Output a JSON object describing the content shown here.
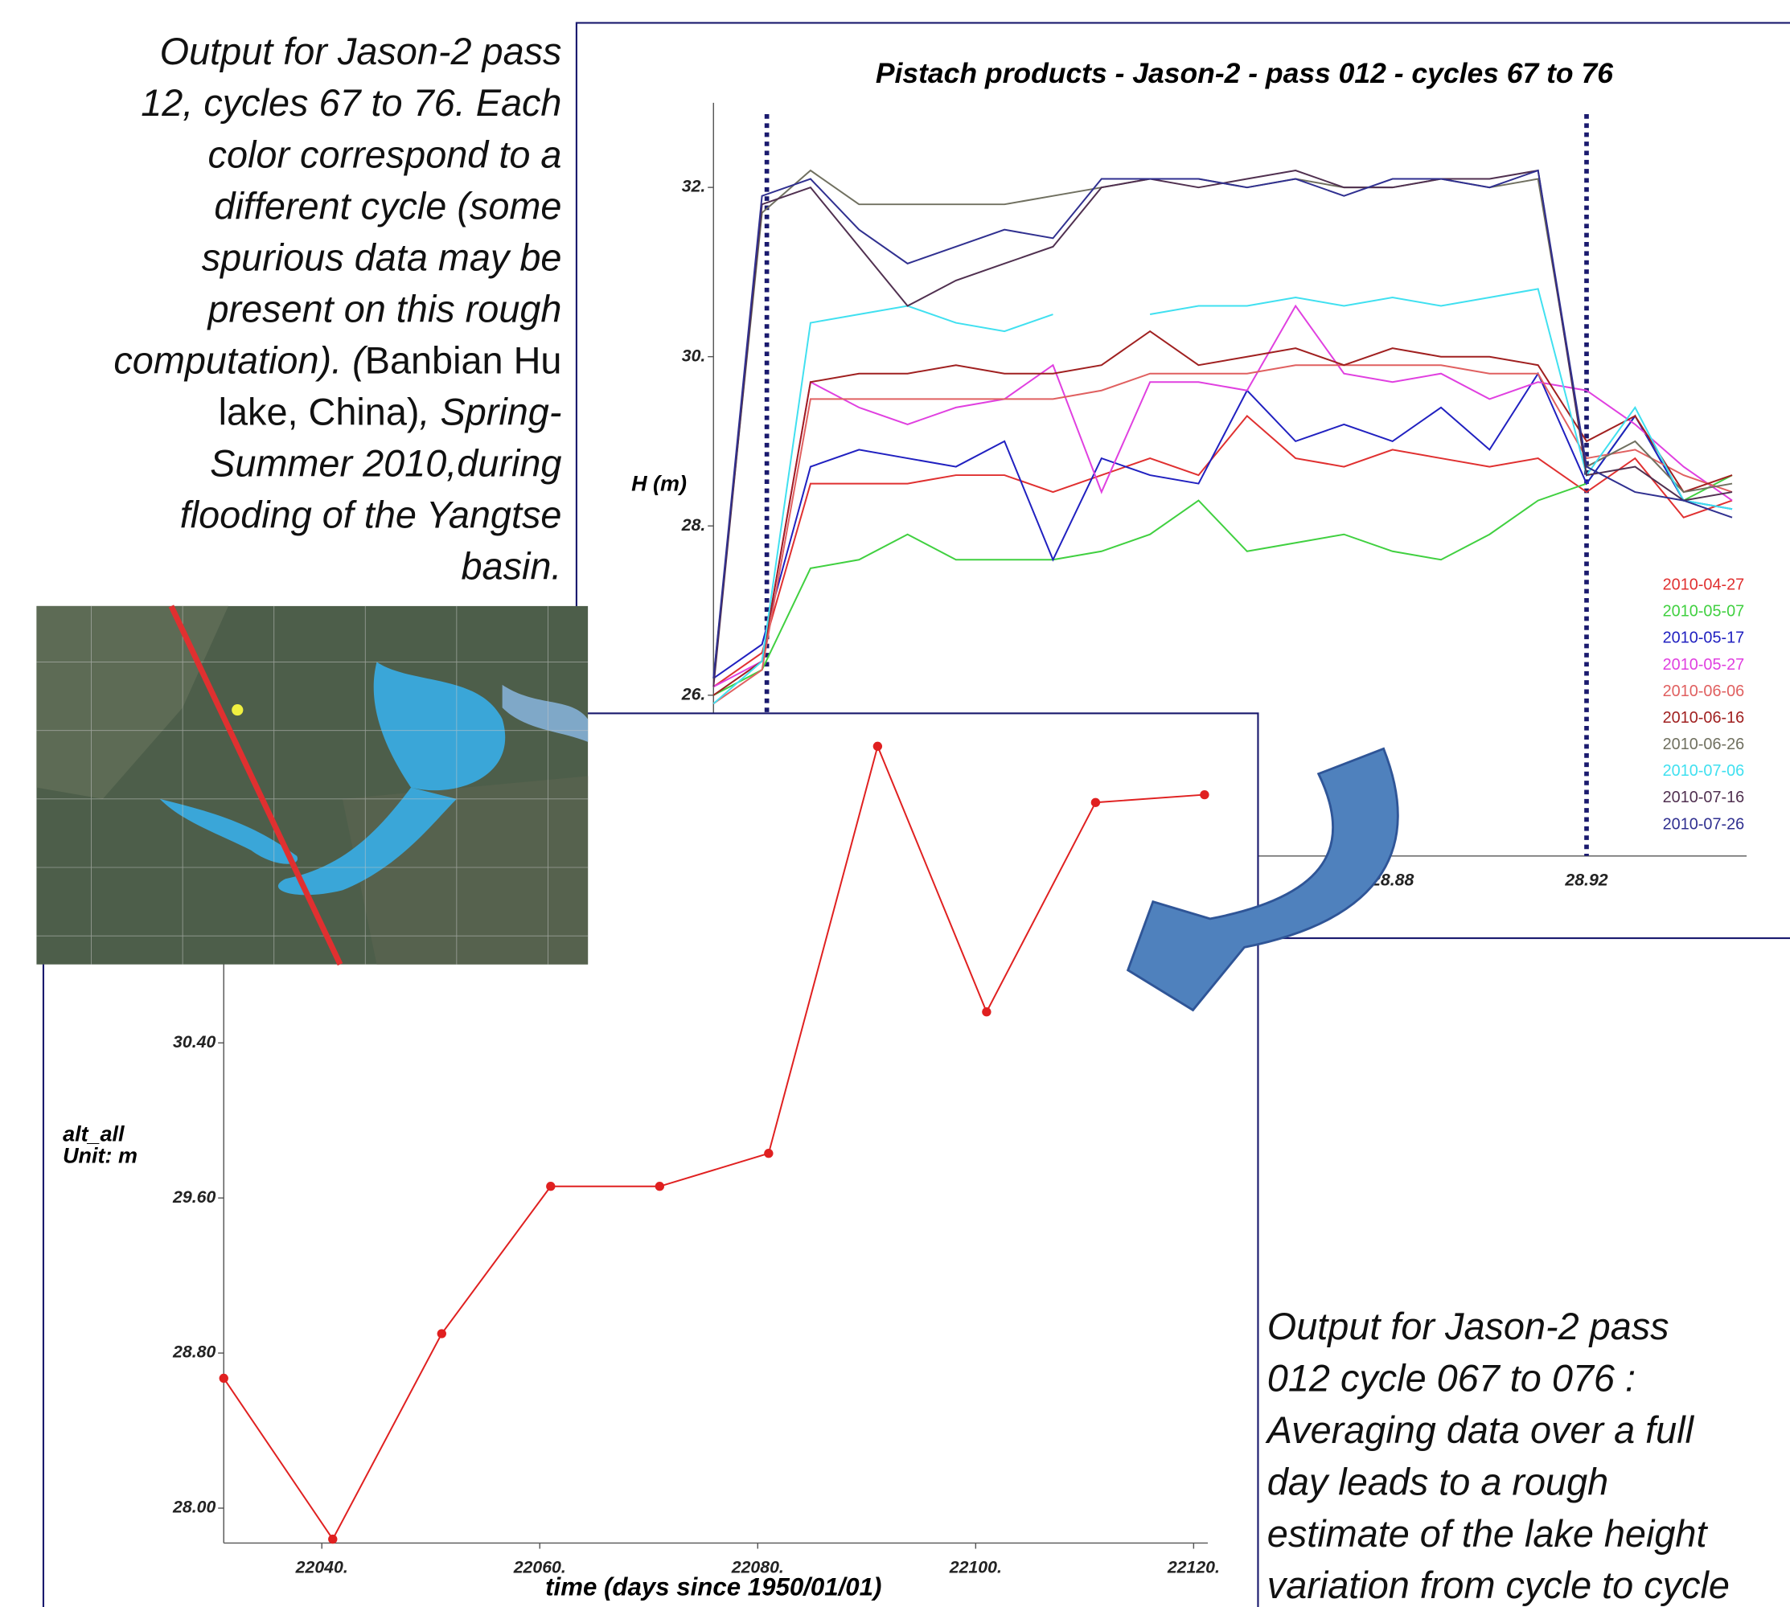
{
  "chart_data": [
    {
      "type": "line",
      "title": "Pistach products - Jason-2 - pass 012 - cycles 67 to 76",
      "ylabel": [
        "H (m)"
      ],
      "x": [
        28.74,
        28.75,
        28.76,
        28.77,
        28.78,
        28.79,
        28.8,
        28.81,
        28.82,
        28.83,
        28.84,
        28.85,
        28.86,
        28.87,
        28.88,
        28.89,
        28.9,
        28.91,
        28.92,
        28.93,
        28.94,
        28.95
      ],
      "series": [
        {
          "name": "2010-04-27",
          "color": "#e03030",
          "values": [
            26.1,
            26.5,
            28.5,
            28.5,
            28.5,
            28.6,
            28.6,
            28.4,
            28.6,
            28.8,
            28.6,
            29.3,
            28.8,
            28.7,
            28.9,
            28.8,
            28.7,
            28.8,
            28.4,
            28.8,
            28.1,
            28.3
          ]
        },
        {
          "name": "2010-05-07",
          "color": "#40d040",
          "values": [
            26.0,
            26.3,
            27.5,
            27.6,
            27.9,
            27.6,
            27.6,
            27.6,
            27.7,
            27.9,
            28.3,
            27.7,
            27.8,
            27.9,
            27.7,
            27.6,
            27.9,
            28.3,
            28.5,
            29.3,
            28.3,
            28.6
          ]
        },
        {
          "name": "2010-05-17",
          "color": "#2020c0",
          "values": [
            26.2,
            26.6,
            28.7,
            28.9,
            28.8,
            28.7,
            29.0,
            27.6,
            28.8,
            28.6,
            28.5,
            29.6,
            29.0,
            29.2,
            29.0,
            29.4,
            28.9,
            29.8,
            28.5,
            29.3,
            28.3,
            28.2
          ]
        },
        {
          "name": "2010-05-27",
          "color": "#e040e0",
          "values": [
            26.1,
            26.4,
            29.7,
            29.4,
            29.2,
            29.4,
            29.5,
            29.9,
            28.4,
            29.7,
            29.7,
            29.6,
            30.6,
            29.8,
            29.7,
            29.8,
            29.5,
            29.7,
            29.6,
            29.2,
            28.7,
            28.3
          ]
        },
        {
          "name": "2010-06-06",
          "color": "#e06060",
          "values": [
            25.9,
            26.3,
            29.5,
            29.5,
            29.5,
            29.5,
            29.5,
            29.5,
            29.6,
            29.8,
            29.8,
            29.8,
            29.9,
            29.9,
            29.9,
            29.9,
            29.8,
            29.8,
            28.8,
            28.9,
            28.6,
            28.4
          ]
        },
        {
          "name": "2010-06-16",
          "color": "#a02020",
          "values": [
            26.0,
            26.4,
            29.7,
            29.8,
            29.8,
            29.9,
            29.8,
            29.8,
            29.9,
            30.3,
            29.9,
            30.0,
            30.1,
            29.9,
            30.1,
            30.0,
            30.0,
            29.9,
            29.0,
            29.3,
            28.4,
            28.6
          ]
        },
        {
          "name": "2010-06-26",
          "color": "#707060",
          "values": [
            26.2,
            31.7,
            32.2,
            31.8,
            31.8,
            31.8,
            31.8,
            31.9,
            32.0,
            32.1,
            32.1,
            32.0,
            32.1,
            32.0,
            32.0,
            32.1,
            32.0,
            32.1,
            28.7,
            29.0,
            28.4,
            28.5
          ]
        },
        {
          "name": "2010-07-06",
          "color": "#40e0f0",
          "values": [
            25.9,
            26.4,
            30.4,
            30.5,
            30.6,
            30.4,
            30.3,
            30.5,
            null,
            30.5,
            30.6,
            30.6,
            30.7,
            30.6,
            30.7,
            30.6,
            30.7,
            30.8,
            28.6,
            29.4,
            28.3,
            28.2
          ]
        },
        {
          "name": "2010-07-16",
          "color": "#503050",
          "values": [
            26.1,
            31.8,
            32.0,
            31.3,
            30.6,
            30.9,
            31.1,
            31.3,
            32.0,
            32.1,
            32.0,
            32.1,
            32.2,
            32.0,
            32.0,
            32.1,
            32.1,
            32.2,
            28.6,
            28.7,
            28.3,
            28.4
          ]
        },
        {
          "name": "2010-07-26",
          "color": "#303090",
          "values": [
            26.2,
            31.9,
            32.1,
            31.5,
            31.1,
            31.3,
            31.5,
            31.4,
            32.1,
            32.1,
            32.1,
            32.0,
            32.1,
            31.9,
            32.1,
            32.1,
            32.0,
            32.2,
            28.7,
            28.4,
            28.3,
            28.1
          ]
        }
      ],
      "xlim": [
        28.74,
        28.953
      ],
      "xticks": [
        28.88,
        28.92
      ],
      "ylim": [
        24.1,
        33.0
      ],
      "yticks": [
        {
          "value": 26,
          "label": "26."
        },
        {
          "value": 28,
          "label": "28."
        },
        {
          "value": 30,
          "label": "30."
        },
        {
          "value": 32,
          "label": "32."
        }
      ],
      "vlines": [
        28.751,
        28.92
      ],
      "vline_color": "#1a1a6e",
      "legend": "right",
      "grid": false
    },
    {
      "type": "line",
      "ylabel": [
        "alt_all",
        "Unit: m"
      ],
      "xlabel": "time (days since 1950/01/01)",
      "x": [
        22031,
        22041,
        22051,
        22061,
        22071,
        22081,
        22091,
        22101,
        22111,
        22121
      ],
      "values": [
        28.67,
        27.84,
        28.9,
        29.66,
        29.66,
        29.83,
        31.93,
        30.56,
        31.64,
        31.68
      ],
      "color": "#e02020",
      "markers": true,
      "xlim": [
        22031,
        22121.3
      ],
      "xticks": [
        {
          "value": 22040,
          "label": "22040."
        },
        {
          "value": 22060,
          "label": "22060."
        },
        {
          "value": 22080,
          "label": "22080."
        },
        {
          "value": 22100,
          "label": "22100."
        },
        {
          "value": 22120,
          "label": "22120."
        }
      ],
      "ylim": [
        27.82,
        32.1
      ],
      "yticks": [
        {
          "value": 28,
          "label": "28.00"
        },
        {
          "value": 28.8,
          "label": "28.80"
        },
        {
          "value": 29.6,
          "label": "29.60"
        },
        {
          "value": 30.4,
          "label": "30.40"
        }
      ],
      "grid": false
    }
  ],
  "caption_top": [
    [
      {
        "text": "Output for Jason-2 pass",
        "italic": true
      }
    ],
    [
      {
        "text": "12, cycles 67 to 76. Each",
        "italic": true
      }
    ],
    [
      {
        "text": "color correspond to a",
        "italic": true
      }
    ],
    [
      {
        "text": "different cycle (some",
        "italic": true
      }
    ],
    [
      {
        "text": "spurious data may be",
        "italic": true
      }
    ],
    [
      {
        "text": "present on this rough",
        "italic": true
      }
    ],
    [
      {
        "text": "computation). (",
        "italic": true
      },
      {
        "text": "Banbian Hu",
        "italic": false
      }
    ],
    [
      {
        "text": "lake, China)",
        "italic": false
      },
      {
        "text": ", Spring-",
        "italic": true
      }
    ],
    [
      {
        "text": "Summer 2010,during",
        "italic": true
      }
    ],
    [
      {
        "text": "flooding of the Yangtse",
        "italic": true
      }
    ],
    [
      {
        "text": "basin.",
        "italic": true
      }
    ]
  ],
  "caption_bottom": [
    "Output for Jason-2 pass",
    "012 cycle 067 to 076 :",
    "Averaging data over a full",
    "day leads to a rough",
    "estimate of the lake height",
    "variation from cycle to cycle"
  ]
}
